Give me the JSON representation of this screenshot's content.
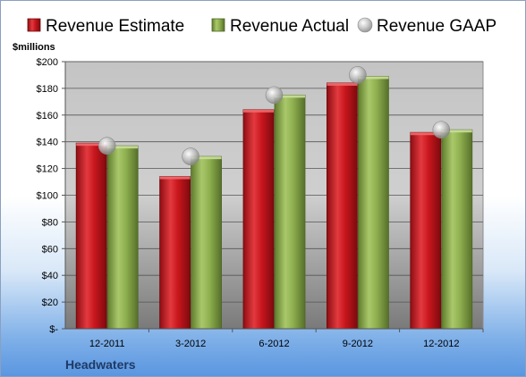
{
  "chart_data": {
    "type": "bar",
    "categories": [
      "12-2011",
      "3-2012",
      "6-2012",
      "9-2012",
      "12-2012"
    ],
    "series": [
      {
        "name": "Revenue Estimate",
        "values": [
          139,
          114,
          164,
          184,
          147
        ],
        "color": "#c8161d"
      },
      {
        "name": "Revenue Actual",
        "values": [
          137,
          129,
          175,
          189,
          149
        ],
        "color": "#8fb04f"
      },
      {
        "name": "Revenue GAAP",
        "values": [
          137,
          129,
          175,
          190,
          149
        ],
        "color": "#b9b9b9",
        "marker": "sphere"
      }
    ],
    "ylabel": "$millions",
    "ylim": [
      0,
      200
    ],
    "yticks": [
      0,
      20,
      40,
      60,
      80,
      100,
      120,
      140,
      160,
      180,
      200
    ],
    "ytick_labels": [
      "$-",
      "$20",
      "$40",
      "$60",
      "$80",
      "$100",
      "$120",
      "$140",
      "$160",
      "$180",
      "$200"
    ],
    "grid": true,
    "legend": "top"
  },
  "company": "Headwaters"
}
